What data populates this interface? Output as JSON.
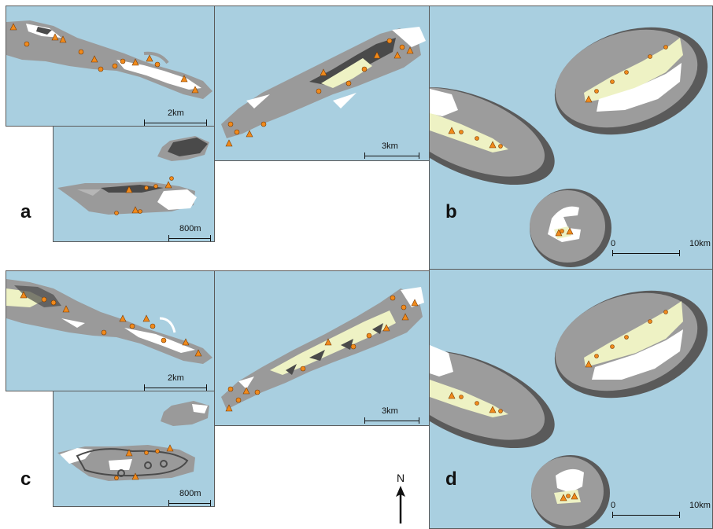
{
  "panel_labels": {
    "a": "a",
    "b": "b",
    "c": "c",
    "d": "d"
  },
  "scales": {
    "a_top": "2km",
    "a_small": "800m",
    "a_mid": "3km",
    "c_top": "2km",
    "c_small": "800m",
    "c_mid": "3km",
    "b_zero": "0",
    "b_max": "10km",
    "d_zero": "0",
    "d_max": "10km"
  },
  "north_arrow": "N",
  "colors": {
    "sea": "#a9cfe0",
    "land_gray": "#9a9a9a",
    "land_dark": "#4a4a4a",
    "bare_white": "#ffffff",
    "vegetation": "#eef2c4",
    "marker_orange": "#f08a1c",
    "buffer_dark": "#5a5a5a",
    "buffer_mid": "#9c9c9c"
  },
  "legend_symbols": [
    "triangle-marker",
    "circle-marker"
  ]
}
